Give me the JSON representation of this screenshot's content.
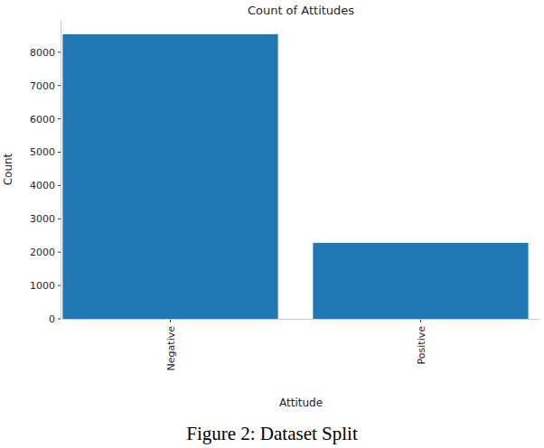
{
  "chart_data": {
    "type": "bar",
    "title": "Count of Attitudes",
    "x_label": "Attitude",
    "y_label": "Count",
    "categories": [
      "Negative",
      "Positive"
    ],
    "values": [
      8540,
      2280
    ],
    "color": "#1f77b4",
    "ylim": [
      0,
      8970
    ],
    "yticks": [
      0,
      1000,
      2000,
      3000,
      4000,
      5000,
      6000,
      7000,
      8000
    ],
    "grid": false,
    "caption": "Figure 2: Dataset Split"
  }
}
